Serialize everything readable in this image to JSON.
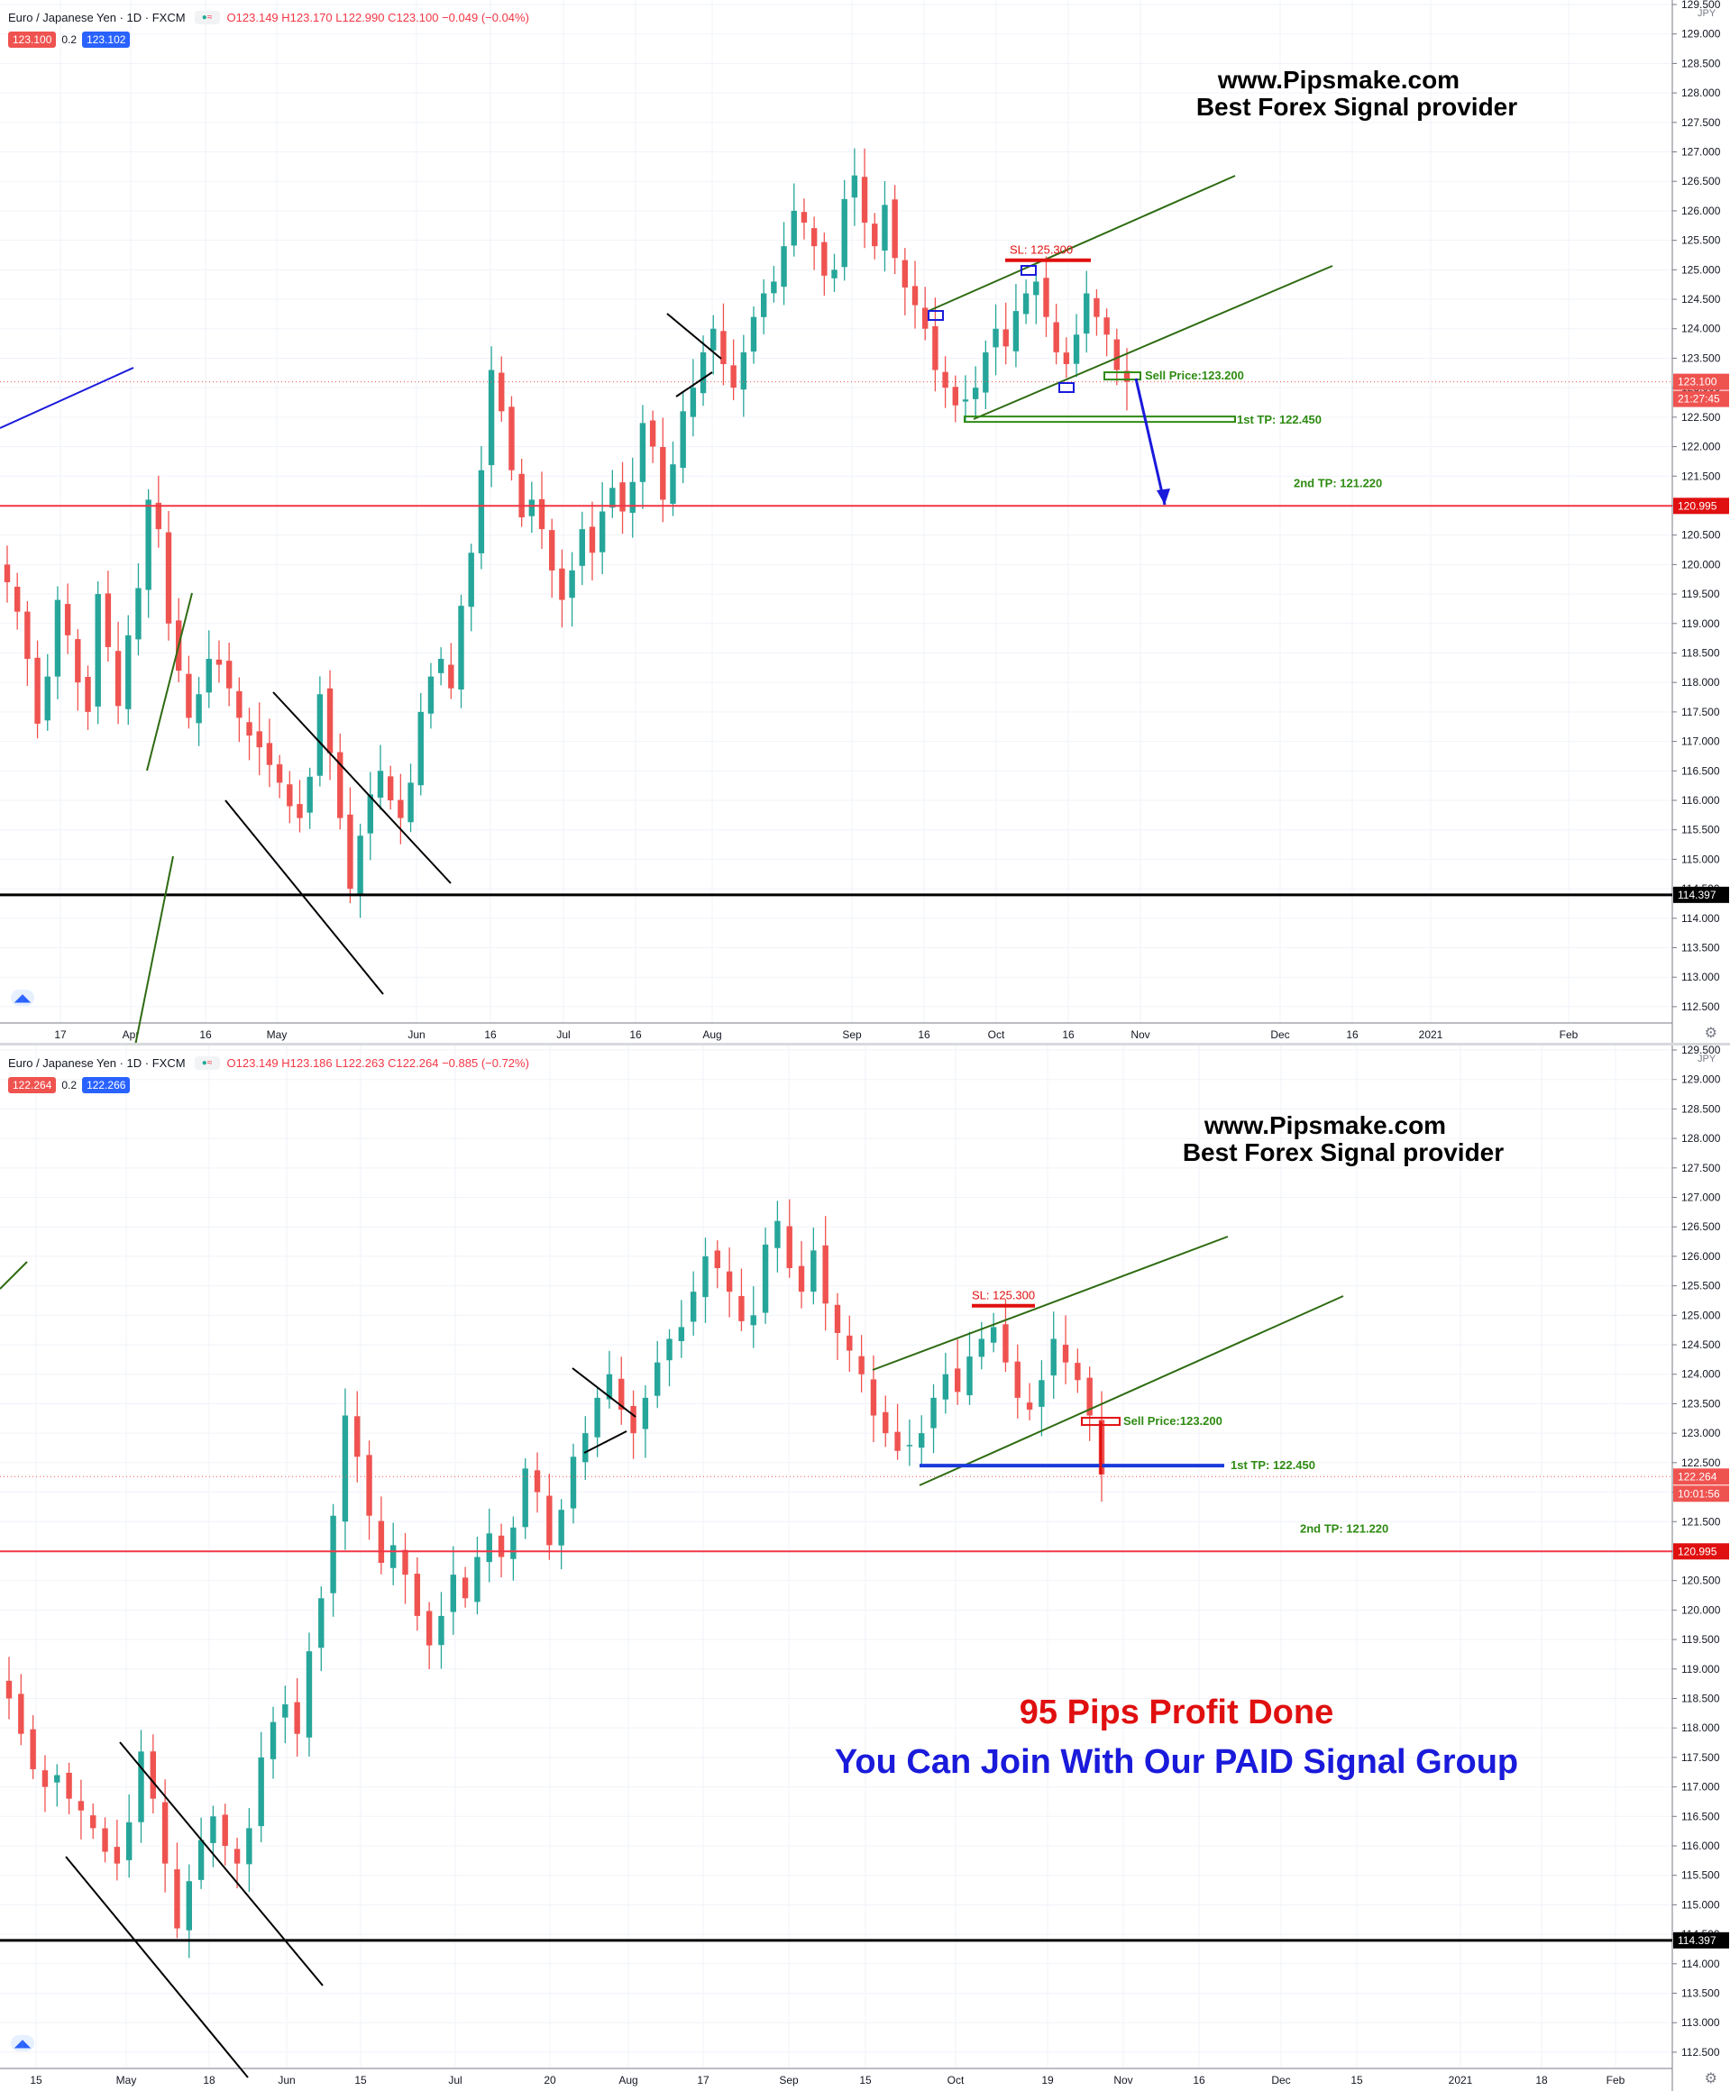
{
  "panes": [
    {
      "id": "top",
      "legend": {
        "symbol": "Euro / Japanese Yen · 1D · FXCM",
        "ohlc": "O123.149 H123.170 L122.990 C123.100 −0.049 (−0.04%)"
      },
      "bid": "123.100",
      "spread": "0.2",
      "ask": "123.102",
      "watermark": [
        "www.Pipsmake.com",
        "Best Forex Signal provider"
      ],
      "x_ticks": [
        "17",
        "Apr",
        "16",
        "May",
        "Jun",
        "16",
        "Jul",
        "16",
        "Aug",
        "Sep",
        "16",
        "Oct",
        "16",
        "Nov",
        "Dec",
        "16",
        "2021",
        "Feb"
      ],
      "annotations": {
        "sl": "SL: 125.300",
        "sell": "Sell Price:123.200",
        "tp1": "1st TP: 122.450",
        "tp2": "2nd TP: 121.220"
      },
      "price_tags": {
        "last": "123.100",
        "countdown": "21:27:45",
        "resistance": "120.995",
        "support": "114.397"
      }
    },
    {
      "id": "bottom",
      "legend": {
        "symbol": "Euro / Japanese Yen · 1D · FXCM",
        "ohlc": "O123.149 H123.186 L122.263 C122.264 −0.885 (−0.72%)"
      },
      "bid": "122.264",
      "spread": "0.2",
      "ask": "122.266",
      "watermark": [
        "www.Pipsmake.com",
        "Best Forex Signal provider"
      ],
      "x_ticks": [
        "15",
        "May",
        "18",
        "Jun",
        "15",
        "Jul",
        "20",
        "Aug",
        "17",
        "Sep",
        "15",
        "Oct",
        "19",
        "Nov",
        "16",
        "Dec",
        "15",
        "2021",
        "18",
        "Feb"
      ],
      "annotations": {
        "sl": "SL: 125.300",
        "sell": "Sell Price:123.200",
        "tp1": "1st TP: 122.450",
        "tp2": "2nd TP: 121.220"
      },
      "price_tags": {
        "last": "122.264",
        "countdown": "10:01:56",
        "resistance": "120.995",
        "support": "114.397"
      },
      "banner": {
        "profit": "95 Pips Profit Done",
        "join": "You Can Join With Our PAID Signal Group"
      }
    }
  ],
  "chart_data": [
    {
      "type": "candlestick",
      "pane": "top",
      "title": "Euro / Japanese Yen · 1D · FXCM",
      "currency": "JPY",
      "ylim": [
        112.3,
        129.5
      ],
      "y_ticks": [
        "112.500",
        "113.000",
        "113.500",
        "114.000",
        "114.500",
        "115.000",
        "115.500",
        "116.000",
        "116.500",
        "117.000",
        "117.500",
        "118.000",
        "118.500",
        "119.000",
        "119.500",
        "120.000",
        "120.500",
        "121.000",
        "121.500",
        "122.000",
        "122.500",
        "123.000",
        "123.500",
        "124.000",
        "124.500",
        "125.000",
        "125.500",
        "126.000",
        "126.500",
        "127.000",
        "127.500",
        "128.000",
        "128.500",
        "129.000",
        "129.500"
      ],
      "closes": [
        119.7,
        119.2,
        118.4,
        117.3,
        118.1,
        119.4,
        118.8,
        118.0,
        117.5,
        119.5,
        118.6,
        117.6,
        118.8,
        119.6,
        121.1,
        120.6,
        119.0,
        118.2,
        117.4,
        117.8,
        118.4,
        118.3,
        117.9,
        117.4,
        117.1,
        116.9,
        116.6,
        116.3,
        115.9,
        115.7,
        116.4,
        117.8,
        116.8,
        115.7,
        114.5,
        115.4,
        116.1,
        116.5,
        116.0,
        115.7,
        116.3,
        117.5,
        118.1,
        118.4,
        117.9,
        119.3,
        120.2,
        121.6,
        123.3,
        122.6,
        121.6,
        120.8,
        121.1,
        120.6,
        119.9,
        119.4,
        119.9,
        120.6,
        120.2,
        120.9,
        121.3,
        120.9,
        121.4,
        122.4,
        122.0,
        121.1,
        121.7,
        122.6,
        123.0,
        123.6,
        124.0,
        123.4,
        123.0,
        123.6,
        124.2,
        124.6,
        124.8,
        125.4,
        126.0,
        125.8,
        125.4,
        124.9,
        125.0,
        126.2,
        126.6,
        125.8,
        125.4,
        126.1,
        125.2,
        124.7,
        124.4,
        124.0,
        123.3,
        123.0,
        122.7,
        122.8,
        123.0,
        123.6,
        124.0,
        123.7,
        124.3,
        124.6,
        124.8,
        124.2,
        123.6,
        123.4,
        123.9,
        124.6,
        124.2,
        123.9,
        123.3,
        123.1
      ],
      "levels": {
        "stop_loss": 125.3,
        "sell_price": 123.2,
        "tp1": 122.45,
        "tp2": 121.22,
        "resistance": 120.995,
        "support": 114.397
      }
    },
    {
      "type": "candlestick",
      "pane": "bottom",
      "title": "Euro / Japanese Yen · 1D · FXCM",
      "currency": "JPY",
      "ylim": [
        112.3,
        129.5
      ],
      "y_ticks": [
        "112.500",
        "113.000",
        "113.500",
        "114.000",
        "114.500",
        "115.000",
        "115.500",
        "116.000",
        "116.500",
        "117.000",
        "117.500",
        "118.000",
        "118.500",
        "119.000",
        "119.500",
        "120.000",
        "120.500",
        "121.000",
        "121.500",
        "122.000",
        "122.500",
        "123.000",
        "123.500",
        "124.000",
        "124.500",
        "125.000",
        "125.500",
        "126.000",
        "126.500",
        "127.000",
        "127.500",
        "128.000",
        "128.500",
        "129.000",
        "129.500"
      ],
      "closes": [
        118.5,
        117.9,
        117.3,
        117.0,
        117.2,
        116.8,
        116.6,
        116.3,
        115.9,
        115.7,
        116.4,
        117.6,
        116.8,
        115.7,
        114.6,
        115.4,
        116.1,
        116.5,
        116.0,
        115.7,
        116.3,
        117.5,
        118.1,
        118.4,
        117.9,
        119.3,
        120.2,
        121.6,
        123.3,
        122.6,
        121.6,
        120.8,
        121.1,
        120.6,
        119.9,
        119.4,
        119.9,
        120.6,
        120.2,
        120.9,
        121.3,
        120.9,
        121.4,
        122.4,
        122.0,
        121.1,
        121.7,
        122.6,
        123.0,
        123.6,
        124.0,
        123.4,
        123.0,
        123.6,
        124.2,
        124.6,
        124.8,
        125.4,
        126.0,
        125.8,
        125.4,
        124.9,
        125.0,
        126.2,
        126.6,
        125.8,
        125.4,
        126.1,
        125.2,
        124.7,
        124.4,
        124.0,
        123.3,
        123.0,
        122.7,
        122.8,
        123.0,
        123.6,
        124.0,
        123.7,
        124.3,
        124.6,
        124.8,
        124.2,
        123.6,
        123.4,
        123.9,
        124.6,
        124.2,
        123.9,
        123.3,
        122.3
      ],
      "levels": {
        "stop_loss": 125.3,
        "sell_price": 123.2,
        "tp1": 122.45,
        "tp2": 121.22,
        "resistance": 120.995,
        "support": 114.397
      }
    }
  ]
}
